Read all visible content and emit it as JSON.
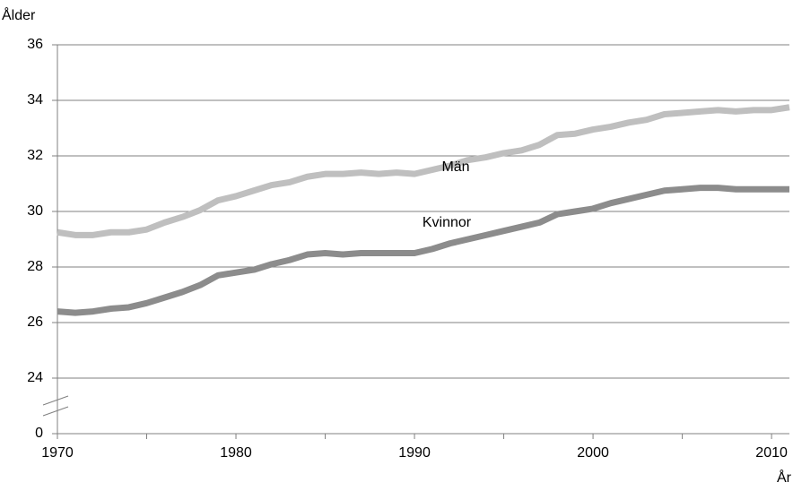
{
  "chart_data": {
    "type": "line",
    "ylabel": "Ålder",
    "xlabel": "År",
    "xlim": [
      1970,
      2011
    ],
    "xticks": [
      1970,
      1980,
      1990,
      2000,
      2010
    ],
    "xminorticks": [
      1975,
      1985,
      1995,
      2005
    ],
    "ylim": [
      0,
      36
    ],
    "yticks": [
      0,
      24,
      26,
      28,
      30,
      32,
      34,
      36
    ],
    "ybreak": [
      0,
      24
    ],
    "grid": true,
    "x": [
      1970,
      1971,
      1972,
      1973,
      1974,
      1975,
      1976,
      1977,
      1978,
      1979,
      1980,
      1981,
      1982,
      1983,
      1984,
      1985,
      1986,
      1987,
      1988,
      1989,
      1990,
      1991,
      1992,
      1993,
      1994,
      1995,
      1996,
      1997,
      1998,
      1999,
      2000,
      2001,
      2002,
      2003,
      2004,
      2005,
      2006,
      2007,
      2008,
      2009,
      2010,
      2011
    ],
    "series": [
      {
        "name": "Män",
        "color": "#bfbfbf",
        "values": [
          29.25,
          29.15,
          29.15,
          29.25,
          29.25,
          29.35,
          29.6,
          29.8,
          30.05,
          30.4,
          30.55,
          30.75,
          30.95,
          31.05,
          31.25,
          31.35,
          31.35,
          31.4,
          31.35,
          31.4,
          31.35,
          31.5,
          31.65,
          31.85,
          31.95,
          32.1,
          32.2,
          32.4,
          32.75,
          32.8,
          32.95,
          33.05,
          33.2,
          33.3,
          33.5,
          33.55,
          33.6,
          33.65,
          33.6,
          33.65,
          33.65,
          33.75
        ]
      },
      {
        "name": "Kvinnor",
        "color": "#8c8c8c",
        "values": [
          26.4,
          26.35,
          26.4,
          26.5,
          26.55,
          26.7,
          26.9,
          27.1,
          27.35,
          27.7,
          27.8,
          27.9,
          28.1,
          28.25,
          28.45,
          28.5,
          28.45,
          28.5,
          28.5,
          28.5,
          28.5,
          28.65,
          28.85,
          29.0,
          29.15,
          29.3,
          29.45,
          29.6,
          29.9,
          30.0,
          30.1,
          30.3,
          30.45,
          30.6,
          30.75,
          30.8,
          30.85,
          30.85,
          30.8,
          30.8,
          30.8,
          30.8
        ]
      }
    ]
  }
}
